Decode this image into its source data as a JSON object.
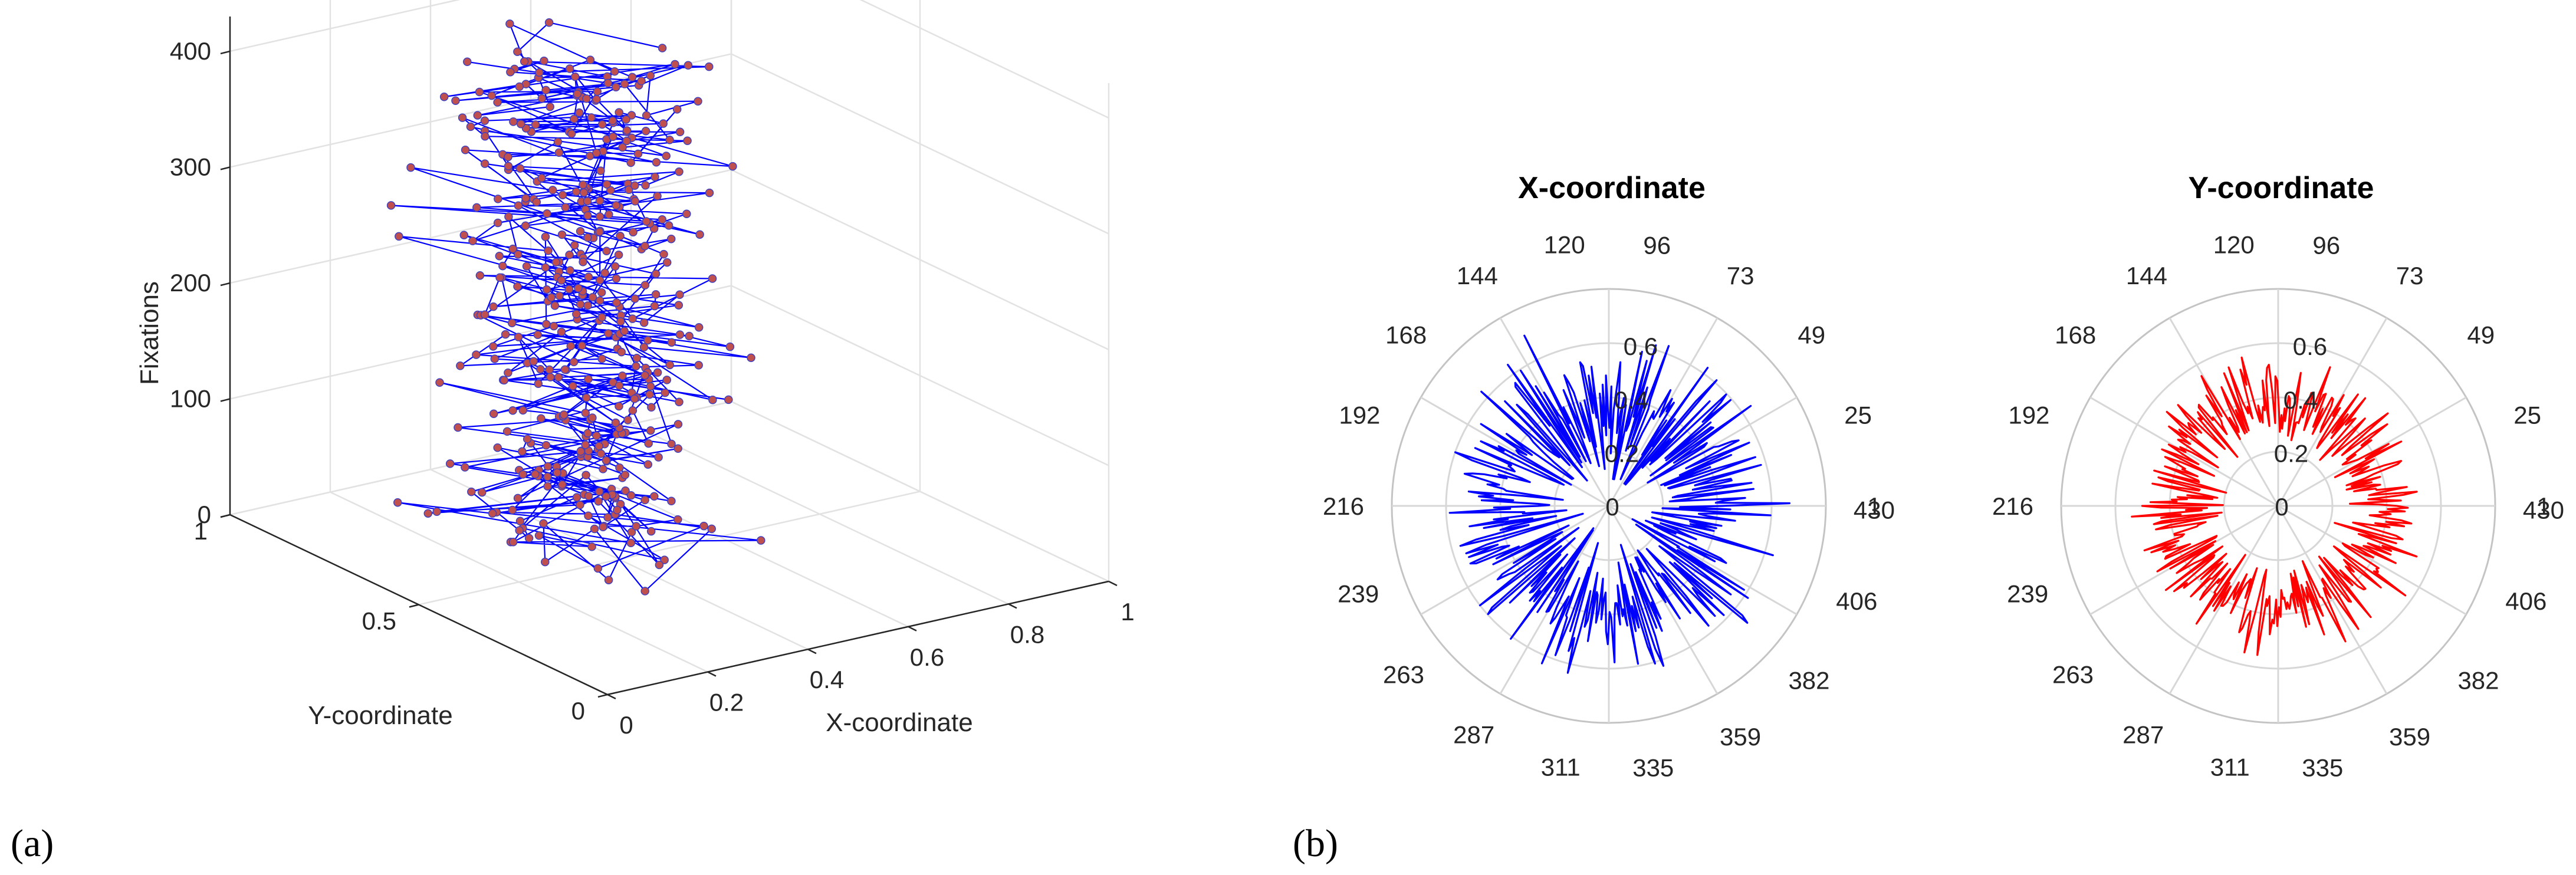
{
  "chart_data": [
    {
      "type": "scatter",
      "name": "3d-scanpath",
      "panel_label": "(a)",
      "xlabel": "X-coordinate",
      "ylabel": "Y-coordinate",
      "zlabel": "Fixations",
      "x_ticks": [
        "0",
        "0.2",
        "0.4",
        "0.6",
        "0.8",
        "1"
      ],
      "y_ticks": [
        "0",
        "0.5",
        "1"
      ],
      "z_ticks": [
        "0",
        "100",
        "200",
        "300",
        "400"
      ],
      "xlim": [
        0,
        1
      ],
      "ylim": [
        0,
        1
      ],
      "zlim": [
        0,
        430
      ],
      "n_fixations": 430,
      "x_mean": 0.38,
      "x_spread": 0.13,
      "y_mean": 0.57,
      "y_spread": 0.13,
      "line_color": "#0000ff",
      "marker_color": "#c0504d",
      "marker_edge": "#4040c0",
      "grid": true
    },
    {
      "type": "line",
      "subtype": "polar",
      "name": "polar-x",
      "panel_label": "(b)",
      "title": "X-coordinate",
      "angle_labels": [
        "1",
        "25",
        "49",
        "73",
        "96",
        "120",
        "144",
        "168",
        "192",
        "216",
        "239",
        "263",
        "287",
        "311",
        "335",
        "359",
        "382",
        "406",
        "430"
      ],
      "radial_ticks": [
        "0",
        "0.2",
        "0.4",
        "0.6"
      ],
      "rlim": [
        0,
        0.8
      ],
      "n_points": 430,
      "r_mean": 0.38,
      "r_spread": 0.15,
      "color": "#0000ff"
    },
    {
      "type": "line",
      "subtype": "polar",
      "name": "polar-y",
      "title": "Y-coordinate",
      "angle_labels": [
        "1",
        "25",
        "49",
        "73",
        "96",
        "120",
        "144",
        "168",
        "192",
        "216",
        "239",
        "263",
        "287",
        "311",
        "335",
        "359",
        "382",
        "406",
        "430"
      ],
      "radial_ticks": [
        "0",
        "0.2",
        "0.4",
        "0.6"
      ],
      "rlim": [
        0,
        0.8
      ],
      "n_points": 430,
      "r_mean": 0.38,
      "r_spread": 0.09,
      "color": "#ff0000"
    }
  ]
}
